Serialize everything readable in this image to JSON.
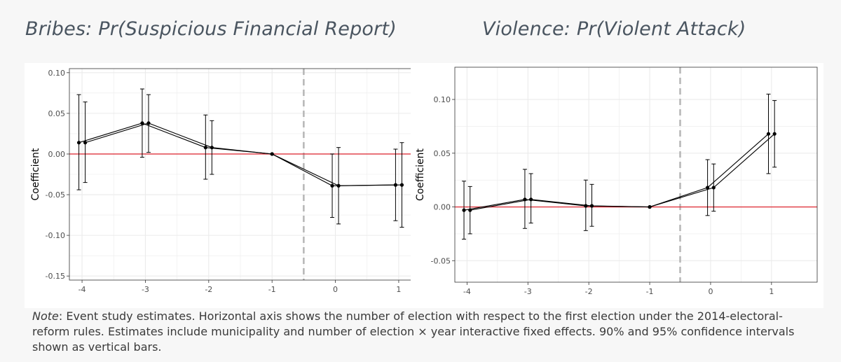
{
  "colors": {
    "background": "#f7f7f7",
    "grid": "#ebebeb",
    "reference_line": "#e0353f",
    "event_line": "#b8b8b8",
    "series": "#000000"
  },
  "note": {
    "label": "Note",
    "text": ": Event study estimates. Horizontal axis shows the number of election with respect to the first election under the 2014-electoral-reform rules. Estimates include municipality and number of election × year interactive fixed effects. 90% and 95% confidence intervals shown as vertical bars."
  },
  "chart_data": [
    {
      "type": "line",
      "title": "Bribes: Pr(Suspicious Financial Report)",
      "xlabel": "",
      "ylabel": "Coefficient",
      "xlim": [
        -4.2,
        1.2
      ],
      "ylim": [
        -0.155,
        0.105
      ],
      "xticks": [
        -4,
        -3,
        -2,
        -1,
        0,
        1
      ],
      "xtick_labels": [
        "-4",
        "-3",
        "-2",
        "-1",
        "0",
        "1"
      ],
      "yticks": [
        -0.15,
        -0.1,
        -0.05,
        0.0,
        0.05,
        0.1
      ],
      "ytick_labels": [
        "-0.15",
        "-0.10",
        "-0.05",
        "0.00",
        "0.05",
        "0.10"
      ],
      "event_line_x": -0.5,
      "reference_y": 0,
      "grid": true,
      "series": [
        {
          "name": "95% CI",
          "x": [
            -4.05,
            -3.05,
            -2.05,
            -1,
            0.05,
            1.05
          ],
          "y": [
            0.014,
            0.038,
            0.008,
            0.0,
            -0.039,
            -0.038
          ],
          "lower": [
            -0.044,
            -0.004,
            -0.031,
            0.0,
            -0.086,
            -0.09
          ],
          "upper": [
            0.073,
            0.08,
            0.048,
            0.0,
            0.008,
            0.014
          ]
        },
        {
          "name": "90% CI",
          "x": [
            -3.95,
            -2.95,
            -1.95,
            -1,
            -0.05,
            0.95
          ],
          "y": [
            0.014,
            0.038,
            0.008,
            0.0,
            -0.039,
            -0.038
          ],
          "lower": [
            -0.035,
            0.002,
            -0.025,
            0.0,
            -0.078,
            -0.082
          ],
          "upper": [
            0.064,
            0.073,
            0.041,
            0.0,
            0.0,
            0.006
          ]
        }
      ]
    },
    {
      "type": "line",
      "title": "Violence: Pr(Violent Attack)",
      "xlabel": "",
      "ylabel": "Coefficient",
      "xlim": [
        -4.2,
        1.75
      ],
      "ylim": [
        -0.07,
        0.13
      ],
      "xticks": [
        -4,
        -3,
        -2,
        -1,
        0,
        1
      ],
      "xtick_labels": [
        "-4",
        "-3",
        "-2",
        "-1",
        "0",
        "1"
      ],
      "yticks": [
        -0.05,
        0.0,
        0.05,
        0.1
      ],
      "ytick_labels": [
        "-0.05",
        "0.00",
        "0.05",
        "0.10"
      ],
      "event_line_x": -0.5,
      "reference_y": 0,
      "grid": true,
      "series": [
        {
          "name": "95% CI",
          "x": [
            -4.05,
            -3.05,
            -2.05,
            -1,
            -0.05,
            0.95
          ],
          "y": [
            -0.003,
            0.007,
            0.001,
            0.0,
            0.018,
            0.068
          ],
          "lower": [
            -0.03,
            -0.02,
            -0.022,
            0.0,
            -0.008,
            0.031
          ],
          "upper": [
            0.024,
            0.035,
            0.025,
            0.0,
            0.044,
            0.105
          ]
        },
        {
          "name": "90% CI",
          "x": [
            -3.95,
            -2.95,
            -1.95,
            -1,
            0.05,
            1.05
          ],
          "y": [
            -0.003,
            0.007,
            0.001,
            0.0,
            0.018,
            0.068
          ],
          "lower": [
            -0.025,
            -0.015,
            -0.018,
            0.0,
            -0.004,
            0.037
          ],
          "upper": [
            0.019,
            0.031,
            0.021,
            0.0,
            0.04,
            0.099
          ]
        }
      ]
    }
  ]
}
